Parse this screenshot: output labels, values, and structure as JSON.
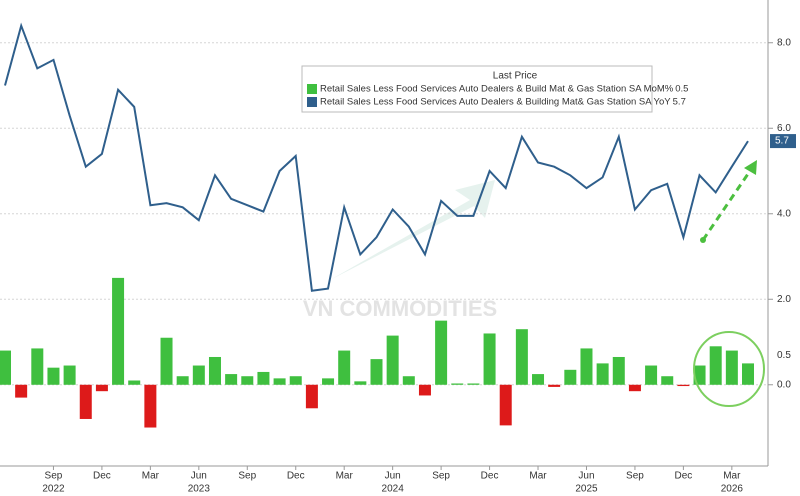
{
  "chart_data": {
    "type": "combo",
    "categories": [
      null,
      null,
      null,
      "Sep",
      null,
      null,
      "Dec",
      null,
      null,
      "Mar",
      null,
      null,
      "Jun",
      null,
      null,
      "Sep",
      null,
      null,
      "Dec",
      null,
      null,
      "Mar",
      null,
      null,
      "Jun",
      null,
      null,
      "Sep",
      null,
      null,
      "Dec",
      null,
      null,
      "Mar",
      null,
      null,
      "Jun",
      null,
      null,
      "Sep",
      null,
      null,
      "Dec",
      null,
      null,
      "Mar",
      null
    ],
    "years": [
      "2022",
      "2023",
      "2024",
      "2025",
      "2026"
    ],
    "legend_title": "Last Price",
    "watermark": "VN COMMODITIES",
    "series": [
      {
        "name": "Retail Sales Less Food Services Auto Dealers & Build Mat & Gas Station SA MoM%",
        "type": "bar",
        "color": "#3fbf3f",
        "negative_color": "#dd1a1a",
        "values": [
          0.8,
          -0.3,
          0.85,
          0.4,
          0.45,
          -0.8,
          -0.15,
          2.5,
          0.1,
          -1.0,
          1.1,
          0.2,
          0.45,
          0.65,
          0.25,
          0.2,
          0.3,
          0.15,
          0.2,
          -0.55,
          0.15,
          0.8,
          0.08,
          0.6,
          1.15,
          0.2,
          -0.25,
          1.5,
          0.03,
          0.03,
          1.2,
          -0.95,
          1.3,
          0.25,
          -0.05,
          0.35,
          0.85,
          0.5,
          0.65,
          -0.15,
          0.45,
          0.2,
          -0.03,
          0.45,
          0.9,
          0.8,
          0.5
        ]
      },
      {
        "name": "Retail Sales Less Food Services Auto Dealers & Building Mat& Gas Station SA YoY",
        "type": "line",
        "color": "#2f5f8c",
        "values": [
          7.0,
          8.4,
          7.4,
          7.6,
          6.3,
          5.1,
          5.4,
          6.9,
          6.5,
          4.2,
          4.25,
          4.15,
          3.85,
          4.9,
          4.35,
          4.2,
          4.05,
          5.0,
          5.35,
          2.2,
          2.25,
          4.15,
          3.05,
          3.45,
          4.1,
          3.7,
          3.05,
          4.3,
          3.95,
          3.95,
          5.0,
          4.6,
          5.8,
          5.2,
          5.1,
          4.9,
          4.6,
          4.85,
          5.8,
          4.1,
          4.55,
          4.7,
          3.45,
          4.9,
          4.5,
          5.1,
          5.7
        ]
      }
    ],
    "ylim": [
      -1.9,
      9.0
    ],
    "yticks": [
      {
        "value": 0,
        "label": "0.0"
      },
      {
        "value": 2,
        "label": "2.0"
      },
      {
        "value": 4,
        "label": "4.0"
      },
      {
        "value": 6,
        "label": "6.0"
      },
      {
        "value": 8,
        "label": "8.0"
      }
    ],
    "grid": true
  }
}
